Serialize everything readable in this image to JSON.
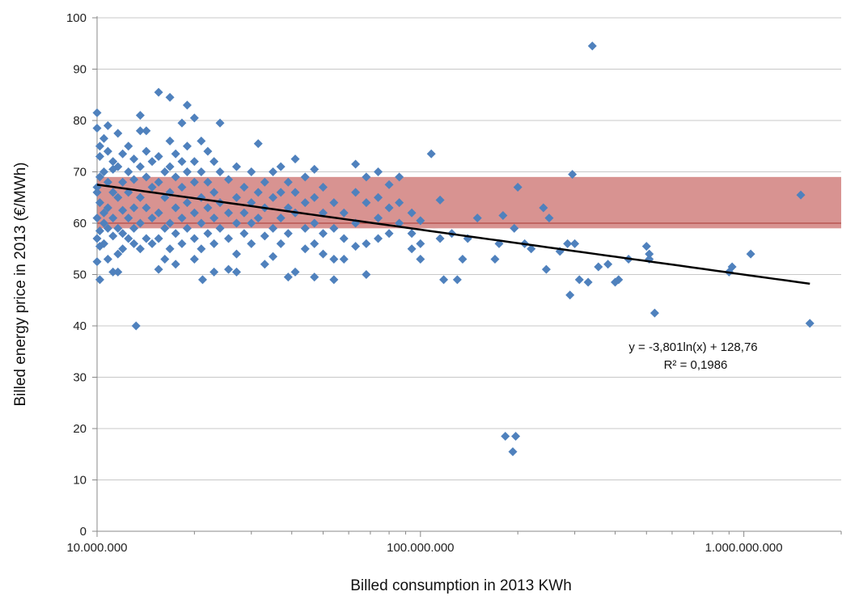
{
  "chart_data": {
    "type": "scatter",
    "title": "",
    "xlabel": "Billed consumption in 2013 KWh",
    "ylabel": "Billed energy price in 2013 (€/MWh)",
    "xscale": "log",
    "xlim": [
      10000000,
      2000000000
    ],
    "ylim": [
      0,
      100
    ],
    "grid": "horizontal",
    "xticks": [
      10000000,
      100000000,
      1000000000
    ],
    "xtick_labels": [
      "10.000.000",
      "100.000.000",
      "1.000.000.000"
    ],
    "yticks": [
      0,
      10,
      20,
      30,
      40,
      50,
      60,
      70,
      80,
      90,
      100
    ],
    "ytick_labels": [
      "0",
      "10",
      "20",
      "30",
      "40",
      "50",
      "60",
      "70",
      "80",
      "90",
      "100"
    ],
    "band": {
      "y_from": 59,
      "y_to": 69,
      "color": "#c0504d"
    },
    "band_center_y": 60,
    "trendline": {
      "type": "logarithmic",
      "a": -3.801,
      "b": 128.76,
      "x_from": 10000000,
      "x_to": 1600000000,
      "color": "#000000"
    },
    "trendline_labels": [
      "y = -3,801ln(x) + 128,76",
      "R² = 0,1986"
    ],
    "point_color": "#4f81bd",
    "points": [
      [
        10000000,
        81.5
      ],
      [
        10000000,
        78.5
      ],
      [
        10000000,
        67
      ],
      [
        10000000,
        66
      ],
      [
        10000000,
        61
      ],
      [
        10000000,
        57
      ],
      [
        10000000,
        52.5
      ],
      [
        10200000,
        75
      ],
      [
        10200000,
        73
      ],
      [
        10200000,
        69
      ],
      [
        10200000,
        64
      ],
      [
        10200000,
        58.5
      ],
      [
        10200000,
        55.5
      ],
      [
        10200000,
        49
      ],
      [
        10500000,
        76.5
      ],
      [
        10500000,
        70
      ],
      [
        10500000,
        62
      ],
      [
        10500000,
        60
      ],
      [
        10500000,
        56
      ],
      [
        10800000,
        79
      ],
      [
        10800000,
        74
      ],
      [
        10800000,
        68
      ],
      [
        10800000,
        63
      ],
      [
        10800000,
        59
      ],
      [
        10800000,
        53
      ],
      [
        11200000,
        72
      ],
      [
        11200000,
        70.5
      ],
      [
        11200000,
        66
      ],
      [
        11200000,
        61
      ],
      [
        11200000,
        57.5
      ],
      [
        11200000,
        50.5
      ],
      [
        11600000,
        77.5
      ],
      [
        11600000,
        71
      ],
      [
        11600000,
        65
      ],
      [
        11600000,
        59
      ],
      [
        11600000,
        54
      ],
      [
        11600000,
        50.5
      ],
      [
        12000000,
        73.5
      ],
      [
        12000000,
        68
      ],
      [
        12000000,
        62.5
      ],
      [
        12000000,
        58
      ],
      [
        12000000,
        55
      ],
      [
        12500000,
        75
      ],
      [
        12500000,
        70
      ],
      [
        12500000,
        66
      ],
      [
        12500000,
        61
      ],
      [
        12500000,
        57
      ],
      [
        13000000,
        72.5
      ],
      [
        13000000,
        68.5
      ],
      [
        13000000,
        63
      ],
      [
        13000000,
        59
      ],
      [
        13000000,
        56
      ],
      [
        13200000,
        40
      ],
      [
        13600000,
        81
      ],
      [
        13600000,
        78
      ],
      [
        13600000,
        71
      ],
      [
        13600000,
        65
      ],
      [
        13600000,
        60
      ],
      [
        13600000,
        55
      ],
      [
        14200000,
        78
      ],
      [
        14200000,
        74
      ],
      [
        14200000,
        69
      ],
      [
        14200000,
        63
      ],
      [
        14200000,
        57
      ],
      [
        14800000,
        72
      ],
      [
        14800000,
        67
      ],
      [
        14800000,
        61
      ],
      [
        14800000,
        56
      ],
      [
        15500000,
        85.5
      ],
      [
        15500000,
        73
      ],
      [
        15500000,
        68
      ],
      [
        15500000,
        62
      ],
      [
        15500000,
        57
      ],
      [
        15500000,
        51
      ],
      [
        16200000,
        70
      ],
      [
        16200000,
        65
      ],
      [
        16200000,
        59
      ],
      [
        16200000,
        53
      ],
      [
        16800000,
        84.5
      ],
      [
        16800000,
        76
      ],
      [
        16800000,
        71
      ],
      [
        16800000,
        66
      ],
      [
        16800000,
        60
      ],
      [
        16800000,
        55
      ],
      [
        17500000,
        73.5
      ],
      [
        17500000,
        69
      ],
      [
        17500000,
        63
      ],
      [
        17500000,
        58
      ],
      [
        17500000,
        52
      ],
      [
        18300000,
        79.5
      ],
      [
        18300000,
        72
      ],
      [
        18300000,
        67
      ],
      [
        18300000,
        61
      ],
      [
        18300000,
        56
      ],
      [
        19000000,
        83
      ],
      [
        19000000,
        75
      ],
      [
        19000000,
        70
      ],
      [
        19000000,
        64
      ],
      [
        19000000,
        59
      ],
      [
        20000000,
        80.5
      ],
      [
        20000000,
        72
      ],
      [
        20000000,
        68
      ],
      [
        20000000,
        62
      ],
      [
        20000000,
        57
      ],
      [
        20000000,
        53
      ],
      [
        21000000,
        76
      ],
      [
        21000000,
        70
      ],
      [
        21000000,
        65
      ],
      [
        21000000,
        60
      ],
      [
        21000000,
        55
      ],
      [
        21200000,
        49
      ],
      [
        22000000,
        74
      ],
      [
        22000000,
        68
      ],
      [
        22000000,
        63
      ],
      [
        22000000,
        58
      ],
      [
        23000000,
        72
      ],
      [
        23000000,
        66
      ],
      [
        23000000,
        61
      ],
      [
        23000000,
        56
      ],
      [
        23000000,
        50.5
      ],
      [
        24000000,
        79.5
      ],
      [
        24000000,
        70
      ],
      [
        24000000,
        64
      ],
      [
        24000000,
        59
      ],
      [
        25500000,
        68.5
      ],
      [
        25500000,
        62
      ],
      [
        25500000,
        57
      ],
      [
        25500000,
        51
      ],
      [
        27000000,
        71
      ],
      [
        27000000,
        65
      ],
      [
        27000000,
        60
      ],
      [
        27000000,
        54
      ],
      [
        27000000,
        50.5
      ],
      [
        28500000,
        67
      ],
      [
        28500000,
        62
      ],
      [
        28500000,
        58
      ],
      [
        30000000,
        70
      ],
      [
        30000000,
        64
      ],
      [
        30000000,
        60
      ],
      [
        30000000,
        56
      ],
      [
        31500000,
        75.5
      ],
      [
        31500000,
        66
      ],
      [
        31500000,
        61
      ],
      [
        33000000,
        68
      ],
      [
        33000000,
        63
      ],
      [
        33000000,
        57.5
      ],
      [
        33000000,
        52
      ],
      [
        35000000,
        70
      ],
      [
        35000000,
        65
      ],
      [
        35000000,
        59
      ],
      [
        35000000,
        53.5
      ],
      [
        37000000,
        71
      ],
      [
        37000000,
        66
      ],
      [
        37000000,
        61
      ],
      [
        37000000,
        56
      ],
      [
        39000000,
        68
      ],
      [
        39000000,
        63
      ],
      [
        39000000,
        58
      ],
      [
        39000000,
        49.5
      ],
      [
        41000000,
        72.5
      ],
      [
        41000000,
        66
      ],
      [
        41000000,
        62
      ],
      [
        41000000,
        50.5
      ],
      [
        44000000,
        69
      ],
      [
        44000000,
        64
      ],
      [
        44000000,
        59
      ],
      [
        44000000,
        55
      ],
      [
        47000000,
        70.5
      ],
      [
        47000000,
        65
      ],
      [
        47000000,
        60
      ],
      [
        47000000,
        56
      ],
      [
        47000000,
        49.5
      ],
      [
        50000000,
        67
      ],
      [
        50000000,
        62
      ],
      [
        50000000,
        58
      ],
      [
        50000000,
        54
      ],
      [
        54000000,
        64
      ],
      [
        54000000,
        59
      ],
      [
        54000000,
        53
      ],
      [
        54000000,
        49
      ],
      [
        58000000,
        62
      ],
      [
        58000000,
        57
      ],
      [
        58000000,
        53
      ],
      [
        63000000,
        71.5
      ],
      [
        63000000,
        66
      ],
      [
        63000000,
        60
      ],
      [
        63000000,
        55.5
      ],
      [
        68000000,
        69
      ],
      [
        68000000,
        64
      ],
      [
        68000000,
        56
      ],
      [
        68000000,
        50
      ],
      [
        74000000,
        70
      ],
      [
        74000000,
        65
      ],
      [
        74000000,
        61
      ],
      [
        74000000,
        57
      ],
      [
        80000000,
        67.5
      ],
      [
        80000000,
        63
      ],
      [
        80000000,
        58
      ],
      [
        86000000,
        69
      ],
      [
        86000000,
        64
      ],
      [
        86000000,
        60
      ],
      [
        94000000,
        62
      ],
      [
        94000000,
        58
      ],
      [
        94000000,
        55
      ],
      [
        100000000,
        60.5
      ],
      [
        100000000,
        56
      ],
      [
        100000000,
        53
      ],
      [
        108000000,
        73.5
      ],
      [
        115000000,
        64.5
      ],
      [
        115000000,
        57
      ],
      [
        118000000,
        49
      ],
      [
        125000000,
        58
      ],
      [
        130000000,
        49
      ],
      [
        135000000,
        53
      ],
      [
        140000000,
        57
      ],
      [
        150000000,
        61
      ],
      [
        170000000,
        53
      ],
      [
        175000000,
        56
      ],
      [
        180000000,
        61.5
      ],
      [
        183000000,
        18.5
      ],
      [
        193000000,
        15.5
      ],
      [
        197000000,
        18.5
      ],
      [
        195000000,
        59
      ],
      [
        200000000,
        67
      ],
      [
        210000000,
        56
      ],
      [
        220000000,
        55
      ],
      [
        240000000,
        63
      ],
      [
        245000000,
        51
      ],
      [
        250000000,
        61
      ],
      [
        270000000,
        54.5
      ],
      [
        285000000,
        56
      ],
      [
        290000000,
        46
      ],
      [
        295000000,
        69.5
      ],
      [
        300000000,
        56
      ],
      [
        310000000,
        49
      ],
      [
        330000000,
        48.5
      ],
      [
        340000000,
        94.5
      ],
      [
        355000000,
        51.5
      ],
      [
        380000000,
        52
      ],
      [
        400000000,
        48.5
      ],
      [
        410000000,
        49
      ],
      [
        440000000,
        53
      ],
      [
        500000000,
        55.5
      ],
      [
        510000000,
        54
      ],
      [
        510000000,
        53
      ],
      [
        530000000,
        42.5
      ],
      [
        900000000,
        50.5
      ],
      [
        920000000,
        51.5
      ],
      [
        1050000000,
        54
      ],
      [
        1500000000,
        65.5
      ],
      [
        1600000000,
        40.5
      ]
    ]
  }
}
